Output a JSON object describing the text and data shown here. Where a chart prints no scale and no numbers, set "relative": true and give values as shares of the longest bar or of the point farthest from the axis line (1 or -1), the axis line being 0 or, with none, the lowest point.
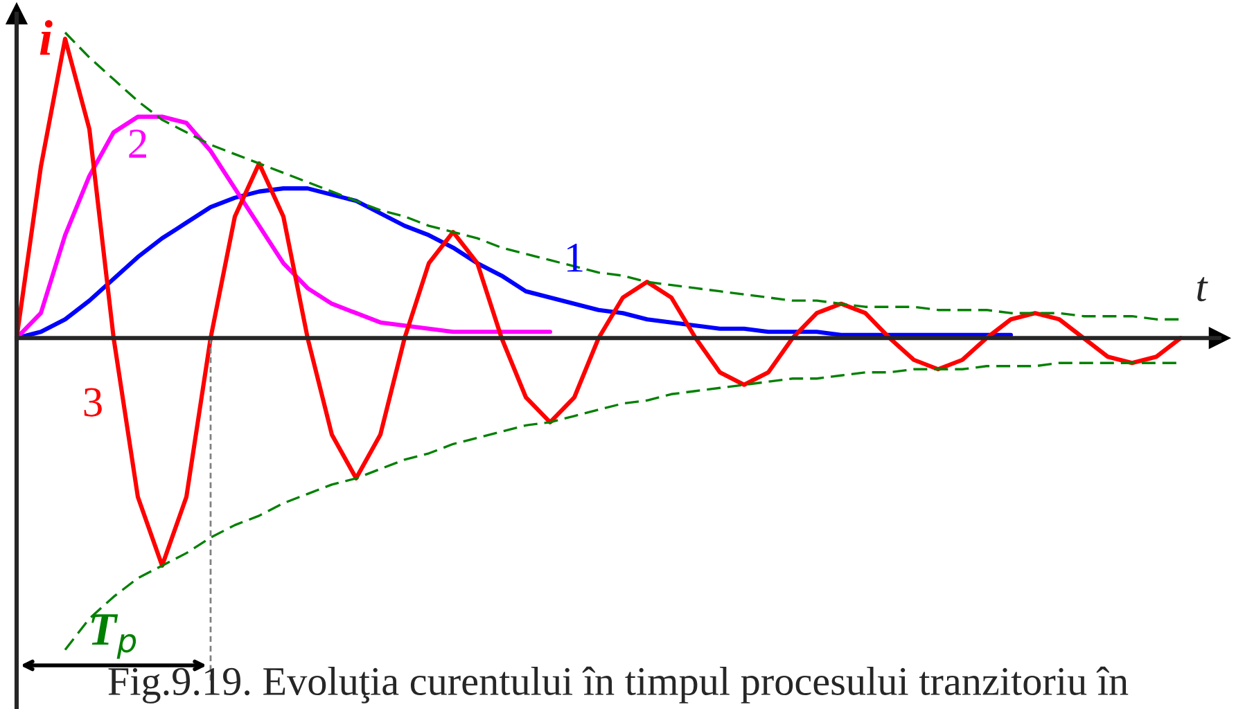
{
  "chart_data": {
    "type": "line",
    "relative": true,
    "xlabel": "t",
    "ylabel": "i",
    "legend": false,
    "grid": false,
    "marker": "none",
    "categories": [
      null,
      null,
      null,
      null,
      null,
      null,
      null,
      null,
      null,
      null,
      null,
      null,
      null,
      null,
      null,
      null,
      null,
      null,
      null,
      null,
      null,
      null,
      null,
      null,
      null,
      null,
      null,
      null,
      null,
      null,
      null,
      null,
      null,
      null,
      null,
      null,
      null,
      null,
      null,
      null,
      null,
      null,
      null,
      null,
      null,
      null,
      null,
      null,
      null
    ],
    "series": [
      {
        "name": "1",
        "color": "#0000ff",
        "line_style": "solid",
        "values": [
          0,
          0.02,
          0.06,
          0.12,
          0.19,
          0.26,
          0.32,
          0.37,
          0.42,
          0.45,
          0.47,
          0.48,
          0.48,
          0.46,
          0.44,
          0.4,
          0.36,
          0.33,
          0.29,
          0.24,
          0.2,
          0.15,
          0.13,
          0.11,
          0.09,
          0.08,
          0.06,
          0.05,
          0.04,
          0.03,
          0.03,
          0.02,
          0.02,
          0.02,
          0.01,
          0.01,
          0.01,
          0.01,
          0.01,
          0.01,
          0.01,
          0.01,
          null,
          null,
          null,
          null,
          null,
          null,
          null
        ]
      },
      {
        "name": "2",
        "color": "#ff00ff",
        "line_style": "solid",
        "values": [
          0,
          0.08,
          0.33,
          0.52,
          0.66,
          0.71,
          0.71,
          0.69,
          0.6,
          0.48,
          0.36,
          0.24,
          0.16,
          0.11,
          0.08,
          0.05,
          0.04,
          0.03,
          0.02,
          0.02,
          0.02,
          0.02,
          0.02,
          null,
          null,
          null,
          null,
          null,
          null,
          null,
          null,
          null,
          null,
          null,
          null,
          null,
          null,
          null,
          null,
          null,
          null,
          null,
          null,
          null,
          null,
          null,
          null,
          null,
          null
        ]
      },
      {
        "name": "3",
        "color": "#ff0000",
        "line_style": "solid",
        "values": [
          0,
          0.55,
          0.96,
          0.67,
          0,
          -0.51,
          -0.73,
          -0.51,
          0,
          0.39,
          0.56,
          0.39,
          0,
          -0.31,
          -0.45,
          -0.31,
          0,
          0.24,
          0.34,
          0.24,
          0,
          -0.19,
          -0.27,
          -0.19,
          0,
          0.13,
          0.18,
          0.13,
          0,
          -0.11,
          -0.15,
          -0.11,
          0,
          0.08,
          0.11,
          0.08,
          0,
          -0.07,
          -0.1,
          -0.07,
          0,
          0.06,
          0.08,
          0.06,
          0,
          -0.06,
          -0.08,
          -0.06,
          0
        ]
      },
      {
        "color": "#008000",
        "line_style": "dashed",
        "values": [
          null,
          null,
          0.98,
          0.9,
          0.83,
          0.76,
          0.7,
          0.66,
          0.62,
          0.59,
          0.56,
          0.53,
          0.5,
          0.47,
          0.44,
          0.41,
          0.39,
          0.36,
          0.34,
          0.32,
          0.29,
          0.27,
          0.25,
          0.23,
          0.21,
          0.2,
          0.18,
          0.17,
          0.16,
          0.15,
          0.14,
          0.13,
          0.12,
          0.12,
          0.11,
          0.1,
          0.1,
          0.1,
          0.09,
          0.09,
          0.09,
          0.08,
          0.08,
          0.08,
          0.07,
          0.07,
          0.07,
          0.06,
          0.06
        ]
      },
      {
        "color": "#008000",
        "line_style": "dashed",
        "values": [
          null,
          null,
          -1,
          -0.9,
          -0.83,
          -0.77,
          -0.73,
          -0.69,
          -0.64,
          -0.6,
          -0.57,
          -0.53,
          -0.5,
          -0.47,
          -0.45,
          -0.42,
          -0.39,
          -0.37,
          -0.34,
          -0.32,
          -0.3,
          -0.28,
          -0.27,
          -0.25,
          -0.23,
          -0.21,
          -0.2,
          -0.18,
          -0.17,
          -0.16,
          -0.15,
          -0.14,
          -0.13,
          -0.13,
          -0.12,
          -0.11,
          -0.11,
          -0.1,
          -0.1,
          -0.1,
          -0.09,
          -0.09,
          -0.09,
          -0.08,
          -0.08,
          -0.08,
          -0.08,
          -0.08,
          -0.08
        ]
      }
    ],
    "annotations": [
      "T$_{p}$",
      "Fig.9.19. Evoluţia curentului în timpul procesului tranzitoriu în"
    ]
  }
}
